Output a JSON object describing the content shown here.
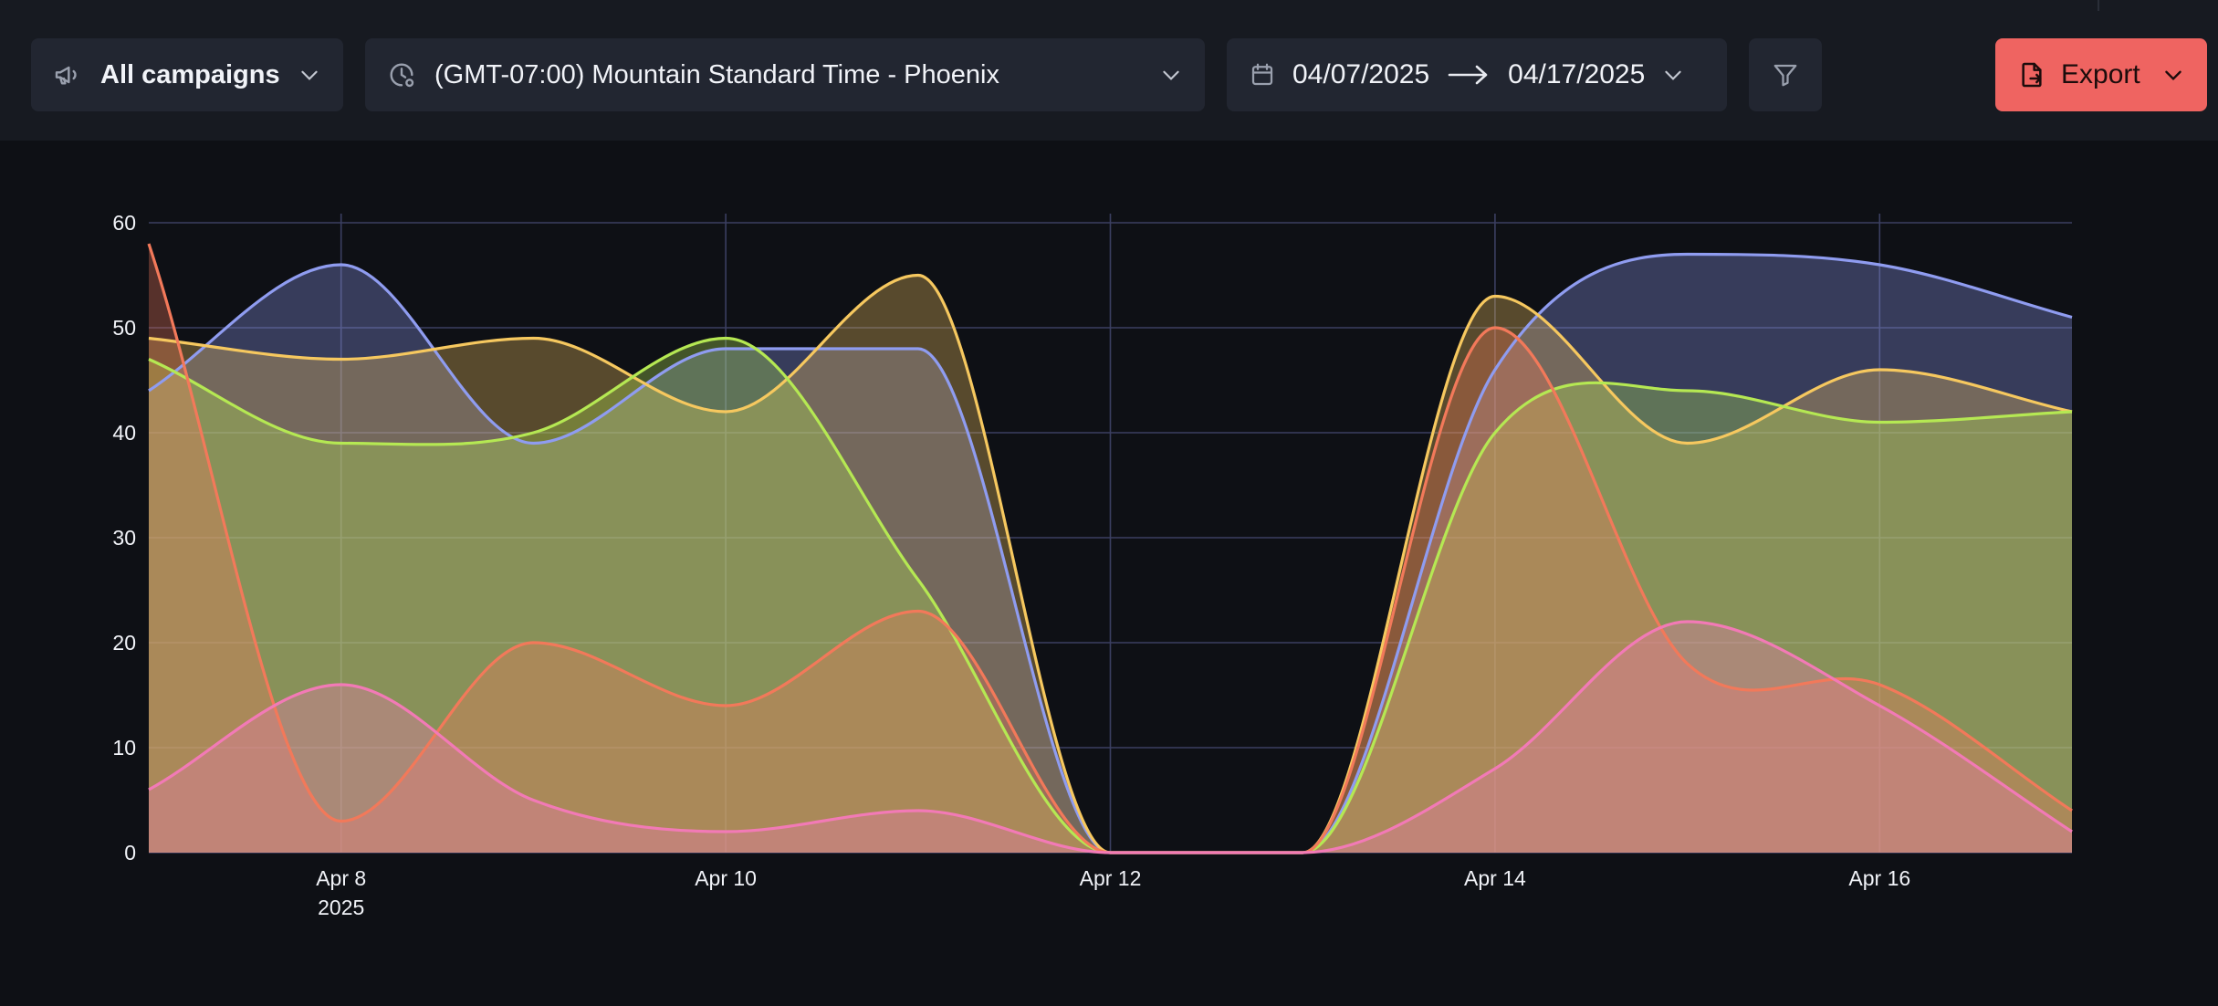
{
  "toolbar": {
    "campaigns_label": "All campaigns",
    "timezone_label": "(GMT-07:00) Mountain Standard Time - Phoenix",
    "date_start": "04/07/2025",
    "date_end": "04/17/2025",
    "export_label": "Export",
    "icons": {
      "campaigns": "megaphone-icon",
      "timezone": "clock-icon",
      "calendar": "calendar-icon",
      "filter": "filter-icon",
      "export": "file-export-icon"
    }
  },
  "colors": {
    "background": "#0e1015",
    "toolbar": "#171a21",
    "control": "#222631",
    "export_button": "#ef6461"
  },
  "chart_data": {
    "type": "area",
    "title": "",
    "xlabel": "",
    "ylabel": "",
    "x": [
      "2025-04-07",
      "2025-04-08",
      "2025-04-09",
      "2025-04-10",
      "2025-04-11",
      "2025-04-12",
      "2025-04-13",
      "2025-04-14",
      "2025-04-15",
      "2025-04-16",
      "2025-04-17"
    ],
    "x_ticks": [
      {
        "x": "2025-04-08",
        "label": "Apr 8",
        "sublabel": "2025"
      },
      {
        "x": "2025-04-10",
        "label": "Apr 10"
      },
      {
        "x": "2025-04-12",
        "label": "Apr 12"
      },
      {
        "x": "2025-04-14",
        "label": "Apr 14"
      },
      {
        "x": "2025-04-16",
        "label": "Apr 16"
      }
    ],
    "ylim": [
      0,
      60
    ],
    "y_ticks": [
      0,
      10,
      20,
      30,
      40,
      50,
      60
    ],
    "grid": true,
    "legend": "none",
    "series": [
      {
        "color": "#8f9cf0",
        "values": [
          44,
          56,
          39,
          48,
          48,
          0,
          0,
          46,
          57,
          56,
          51
        ]
      },
      {
        "color": "#f6c85f",
        "values": [
          49,
          47,
          49,
          42,
          55,
          0,
          0,
          53,
          39,
          46,
          42
        ]
      },
      {
        "color": "#b5e853",
        "values": [
          47,
          39,
          40,
          49,
          26,
          0,
          0,
          40,
          44,
          41,
          42
        ]
      },
      {
        "color": "#f2795a",
        "values": [
          58,
          3,
          20,
          14,
          23,
          0,
          0,
          50,
          18,
          16,
          4
        ]
      },
      {
        "color": "#f27ab6",
        "values": [
          6,
          16,
          5,
          2,
          4,
          0,
          0,
          8,
          22,
          14,
          2
        ]
      }
    ]
  }
}
